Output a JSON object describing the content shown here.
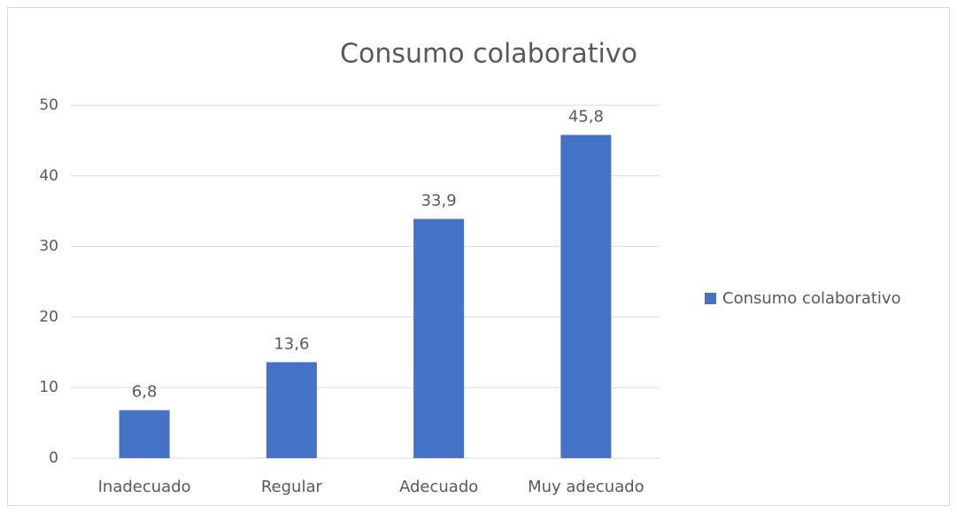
{
  "chart_data": {
    "type": "bar",
    "title": "Consumo colaborativo",
    "categories": [
      "Inadecuado",
      "Regular",
      "Adecuado",
      "Muy adecuado"
    ],
    "series": [
      {
        "name": "Consumo colaborativo",
        "color": "#4472c4",
        "values": [
          6.8,
          13.6,
          33.9,
          45.8
        ],
        "value_labels": [
          "6,8",
          "13,6",
          "33,9",
          "45,8"
        ]
      }
    ],
    "ylim": [
      0,
      50
    ],
    "yticks": [
      0,
      10,
      20,
      30,
      40,
      50
    ],
    "grid": true,
    "legend": "right"
  }
}
